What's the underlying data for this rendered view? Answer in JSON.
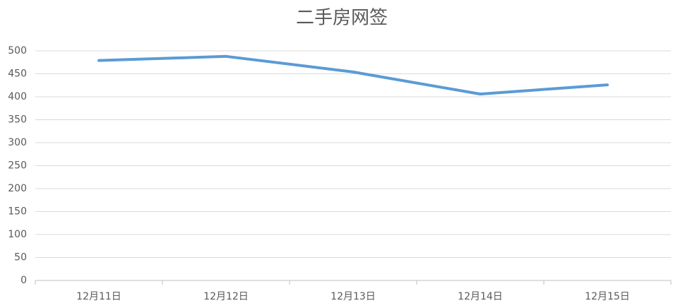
{
  "chart_data": {
    "type": "line",
    "title": "二手房网签",
    "categories": [
      "12月11日",
      "12月12日",
      "12月13日",
      "12月14日",
      "12月15日"
    ],
    "series": [
      {
        "name": "二手房网签",
        "color": "#5b9bd5",
        "values": [
          479,
          488,
          454,
          406,
          426
        ]
      }
    ],
    "ylim": [
      0,
      500
    ],
    "yticks": [
      0,
      50,
      100,
      150,
      200,
      250,
      300,
      350,
      400,
      450,
      500
    ],
    "grid": true
  }
}
